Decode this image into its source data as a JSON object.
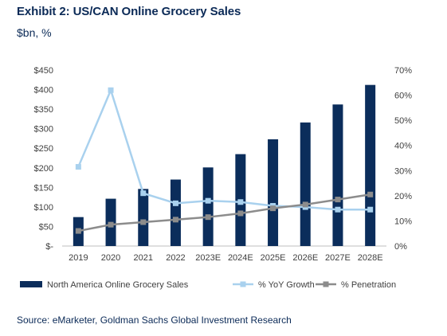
{
  "exhibit": {
    "title": "Exhibit 2: US/CAN Online Grocery Sales",
    "subtitle": "$bn, %",
    "source": "Source: eMarketer, Goldman Sachs Global Investment Research"
  },
  "chart_data": {
    "type": "bar",
    "categories": [
      "2019",
      "2020",
      "2021",
      "2022",
      "2023E",
      "2024E",
      "2025E",
      "2026E",
      "2027E",
      "2028E"
    ],
    "series": [
      {
        "name": "North America Online Grocery Sales",
        "type": "bar",
        "axis": "left",
        "color": "#0b2d5b",
        "values": [
          74,
          121,
          146,
          170,
          201,
          235,
          273,
          316,
          362,
          412
        ]
      },
      {
        "name": "% YoY Growth",
        "type": "line",
        "axis": "right",
        "color": "#a9d1ee",
        "values": [
          31.5,
          62,
          21,
          17,
          18,
          17.5,
          16,
          15.5,
          14.5,
          14.5
        ]
      },
      {
        "name": "% Penetration",
        "type": "line",
        "axis": "right",
        "color": "#8c8c8c",
        "values": [
          6,
          8.5,
          9.5,
          10.5,
          11.5,
          13,
          15,
          16.5,
          18.5,
          20.5
        ]
      }
    ],
    "y_left": {
      "ylim": [
        0,
        450
      ],
      "ticks": [
        450,
        400,
        350,
        300,
        250,
        200,
        150,
        100,
        50,
        0
      ],
      "tick_labels": [
        "$450",
        "$400",
        "$350",
        "$300",
        "$250",
        "$200",
        "$150",
        "$100",
        "$50",
        "$-"
      ]
    },
    "y_right": {
      "ylim": [
        0,
        70
      ],
      "ticks": [
        70,
        60,
        50,
        40,
        30,
        20,
        10,
        0
      ],
      "tick_labels": [
        "70%",
        "60%",
        "50%",
        "40%",
        "30%",
        "20%",
        "10%",
        "0%"
      ]
    },
    "grid": false,
    "legend_position": "bottom"
  }
}
